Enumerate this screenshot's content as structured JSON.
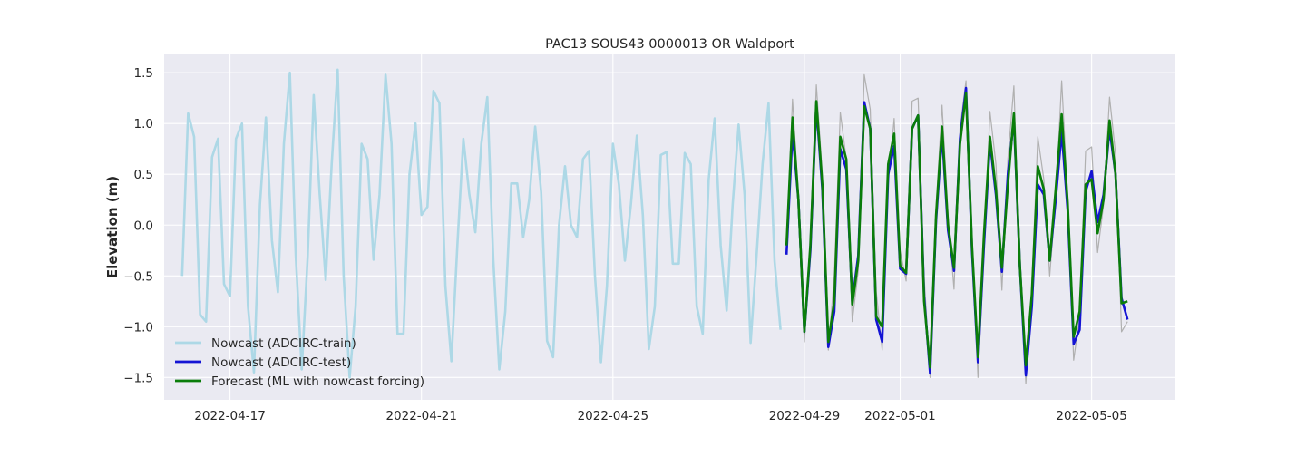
{
  "chart_data": {
    "type": "line",
    "title": "PAC13 SOUS43 0000013 OR Waldport",
    "xlabel": "",
    "ylabel": "Elevation (m)",
    "xlim": [
      "2022-04-15T15:00",
      "2022-05-06T18:00"
    ],
    "ylim": [
      -1.72,
      1.68
    ],
    "x_ticks": [
      "2022-04-17",
      "2022-04-21",
      "2022-04-25",
      "2022-04-29",
      "2022-05-01",
      "2022-05-05"
    ],
    "y_ticks": [
      -1.5,
      -1.0,
      -0.5,
      0.0,
      0.5,
      1.0,
      1.5
    ],
    "y_tick_labels": [
      "−1.5",
      "−1.0",
      "−0.5",
      "0.0",
      "0.5",
      "1.0",
      "1.5"
    ],
    "grid": true,
    "legend_position": "lower-left",
    "background_color": "#eaeaf2",
    "series": [
      {
        "name": "Nowcast (ADCIRC-train)",
        "color": "#add8e6",
        "x_start": "2022-04-16T00:00",
        "x_step_hours": 3,
        "y": [
          -0.5,
          1.1,
          0.87,
          -0.88,
          -0.95,
          0.67,
          0.85,
          -0.58,
          -0.7,
          0.85,
          1.0,
          -0.8,
          -1.45,
          0.2,
          1.06,
          -0.15,
          -0.66,
          0.8,
          1.5,
          -0.3,
          -1.42,
          -0.3,
          1.28,
          0.3,
          -0.54,
          0.6,
          1.53,
          -0.5,
          -1.5,
          -0.8,
          0.8,
          0.65,
          -0.34,
          0.3,
          1.48,
          0.8,
          -1.07,
          -1.07,
          0.5,
          1.0,
          0.1,
          0.18,
          1.32,
          1.2,
          -0.6,
          -1.34,
          -0.2,
          0.85,
          0.3,
          -0.07,
          0.8,
          1.26,
          -0.34,
          -1.42,
          -0.85,
          0.41,
          0.41,
          -0.12,
          0.25,
          0.97,
          0.32,
          -1.14,
          -1.3,
          0.0,
          0.58,
          0.0,
          -0.12,
          0.65,
          0.73,
          -0.5,
          -1.35,
          -0.6,
          0.8,
          0.4,
          -0.35,
          0.2,
          0.88,
          0.1,
          -1.22,
          -0.8,
          0.69,
          0.72,
          -0.38,
          -0.38,
          0.71,
          0.6,
          -0.8,
          -1.07,
          0.45,
          1.05,
          -0.2,
          -0.84,
          0.2,
          0.99,
          0.3,
          -1.16,
          -0.3,
          0.6,
          1.2,
          -0.35,
          -1.03
        ]
      },
      {
        "name": "Observed (unlabeled grey line)",
        "color": "#b0b0b0",
        "x_start": "2022-04-28T15:00",
        "x_step_hours": 3,
        "y": [
          -0.25,
          1.24,
          0.3,
          -1.15,
          -0.2,
          1.38,
          0.5,
          -1.23,
          -0.5,
          1.11,
          0.65,
          -0.95,
          -0.45,
          1.48,
          1.14,
          -0.65,
          -1.23,
          0.4,
          1.05,
          -0.25,
          -0.55,
          1.22,
          1.25,
          -0.5,
          -1.5,
          0.18,
          1.18,
          0.1,
          -0.63,
          0.95,
          1.42,
          -0.18,
          -1.5,
          -0.3,
          1.12,
          0.6,
          -0.64,
          0.65,
          1.37,
          -0.36,
          -1.56,
          -0.6,
          0.87,
          0.45,
          -0.5,
          0.25,
          1.42,
          0.28,
          -1.33,
          -0.9,
          0.73,
          0.77,
          -0.27,
          0.2,
          1.26,
          0.7,
          -1.05,
          -0.95
        ]
      },
      {
        "name": "Nowcast (ADCIRC-test)",
        "color": "#1414d4",
        "x_start": "2022-04-28T15:00",
        "x_step_hours": 3,
        "y": [
          -0.29,
          0.92,
          0.25,
          -1.05,
          -0.25,
          1.18,
          0.35,
          -1.2,
          -0.85,
          0.75,
          0.55,
          -0.75,
          -0.3,
          1.21,
          0.95,
          -0.93,
          -1.15,
          0.5,
          0.78,
          -0.43,
          -0.48,
          0.95,
          1.08,
          -0.7,
          -1.46,
          0.05,
          0.9,
          -0.05,
          -0.45,
          0.85,
          1.35,
          -0.25,
          -1.35,
          -0.2,
          0.82,
          0.3,
          -0.46,
          0.5,
          1.05,
          -0.4,
          -1.48,
          -0.8,
          0.4,
          0.3,
          -0.35,
          0.25,
          0.92,
          0.15,
          -1.17,
          -1.03,
          0.33,
          0.53,
          0.03,
          0.3,
          0.95,
          0.5,
          -0.72,
          -0.93
        ]
      },
      {
        "name": "Forecast (ML with nowcast forcing)",
        "color": "#0a7d0a",
        "x_start": "2022-04-28T15:00",
        "x_step_hours": 3,
        "y": [
          -0.2,
          1.06,
          0.25,
          -1.05,
          -0.2,
          1.22,
          0.4,
          -1.15,
          -0.75,
          0.87,
          0.65,
          -0.78,
          -0.35,
          1.17,
          0.95,
          -0.9,
          -1.0,
          0.6,
          0.9,
          -0.4,
          -0.47,
          0.95,
          1.08,
          -0.75,
          -1.4,
          0.1,
          0.97,
          0.0,
          -0.42,
          0.8,
          1.3,
          -0.2,
          -1.3,
          -0.1,
          0.87,
          0.35,
          -0.42,
          0.4,
          1.1,
          -0.4,
          -1.38,
          -0.68,
          0.58,
          0.35,
          -0.35,
          0.35,
          1.09,
          0.22,
          -1.1,
          -0.85,
          0.4,
          0.45,
          -0.08,
          0.25,
          1.03,
          0.5,
          -0.77,
          -0.75
        ]
      }
    ],
    "legend": [
      {
        "label": "Nowcast (ADCIRC-train)",
        "color": "#add8e6"
      },
      {
        "label": "Nowcast (ADCIRC-test)",
        "color": "#1414d4"
      },
      {
        "label": "Forecast (ML with nowcast forcing)",
        "color": "#0a7d0a"
      }
    ]
  }
}
